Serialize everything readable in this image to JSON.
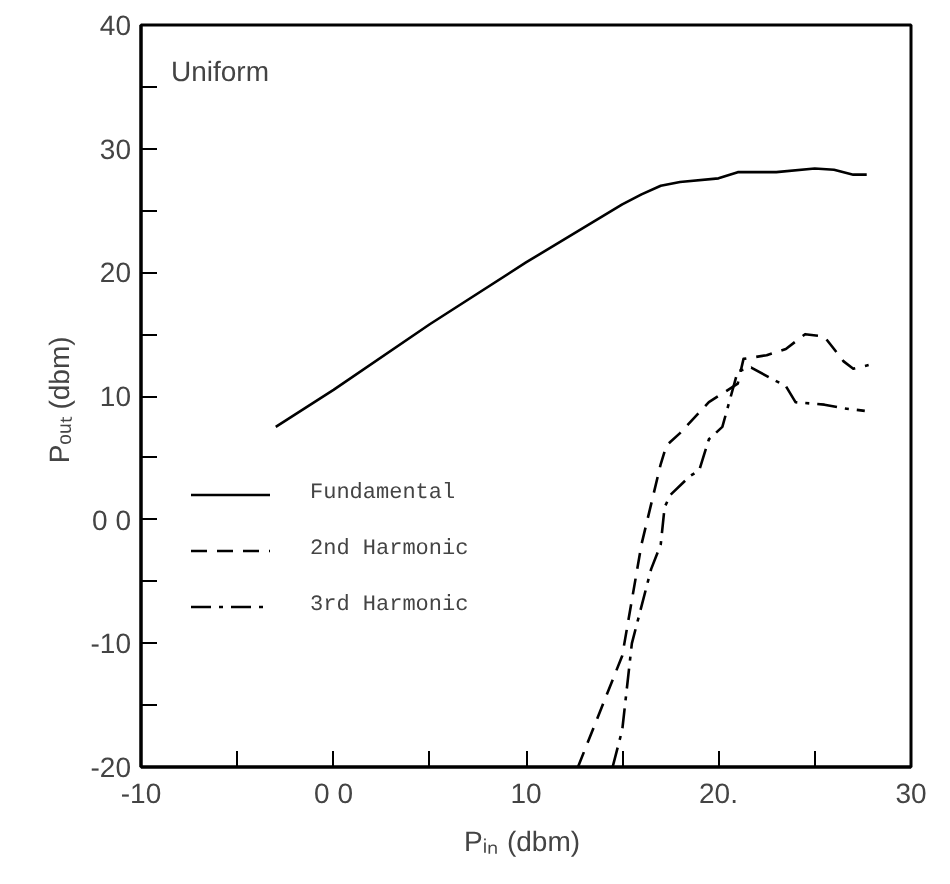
{
  "chart_data": {
    "type": "line",
    "xlabel": "Pᵢₙ  (dbm)",
    "ylabel": "Pₒᵤₜ  (dbm)",
    "annotations": [
      "Uniform"
    ],
    "xlim": [
      -10,
      30
    ],
    "ylim": [
      -20,
      40
    ],
    "xticks": [
      {
        "value": -10,
        "label": "-10"
      },
      {
        "value": -5,
        "label": null
      },
      {
        "value": 0,
        "label": "0 0"
      },
      {
        "value": 5,
        "label": null
      },
      {
        "value": 10,
        "label": "10"
      },
      {
        "value": 15,
        "label": null
      },
      {
        "value": 20,
        "label": "20."
      },
      {
        "value": 25,
        "label": null
      },
      {
        "value": 30,
        "label": "30"
      }
    ],
    "yticks": [
      {
        "value": -20,
        "label": "-20"
      },
      {
        "value": -15,
        "label": null
      },
      {
        "value": -10,
        "label": "-10"
      },
      {
        "value": -5,
        "label": null
      },
      {
        "value": 0,
        "label": "0 0"
      },
      {
        "value": 5,
        "label": null
      },
      {
        "value": 10,
        "label": "10"
      },
      {
        "value": 15,
        "label": null
      },
      {
        "value": 20,
        "label": "20"
      },
      {
        "value": 25,
        "label": null
      },
      {
        "value": 30,
        "label": "30"
      },
      {
        "value": 35,
        "label": null
      },
      {
        "value": 40,
        "label": "40"
      }
    ],
    "grid": false,
    "legend": "left",
    "marker": "none",
    "series": [
      {
        "name": "Fundamental",
        "color": "#000000",
        "line_style": "solid",
        "x": [
          -3,
          0,
          5,
          10,
          15,
          16,
          17,
          18,
          20,
          21,
          23,
          25,
          26,
          27,
          27.7
        ],
        "values": [
          7.5,
          10.5,
          15.8,
          20.8,
          25.5,
          26.3,
          27,
          27.3,
          27.6,
          28.1,
          28.1,
          28.4,
          28.3,
          27.9,
          27.9
        ]
      },
      {
        "name": "2nd Harmonic",
        "color": "#000000",
        "line_style": "dashed",
        "x": [
          12.7,
          15,
          16,
          17,
          17.3,
          18,
          19.5,
          21,
          21.3,
          22.5,
          23.5,
          24.5,
          25.5,
          26.5,
          27,
          27.8
        ],
        "values": [
          -20,
          -11,
          -2,
          4.5,
          6,
          7,
          9.5,
          11,
          13,
          13.3,
          13.8,
          15,
          14.8,
          12.8,
          12.2,
          12.5
        ]
      },
      {
        "name": "3rd Harmonic",
        "color": "#000000",
        "line_style": "dashdot",
        "x": [
          14.5,
          15,
          15.5,
          16.5,
          17,
          17.2,
          17.5,
          18.5,
          19,
          19.5,
          20.2,
          21,
          21.7,
          23,
          23.5,
          24,
          25.5,
          26.5,
          27.6
        ],
        "values": [
          -20,
          -17,
          -10,
          -4,
          -2,
          1,
          2,
          3.5,
          4,
          6.5,
          7.5,
          12,
          12.3,
          11.2,
          10.8,
          9.5,
          9.3,
          9,
          8.8
        ]
      }
    ]
  }
}
